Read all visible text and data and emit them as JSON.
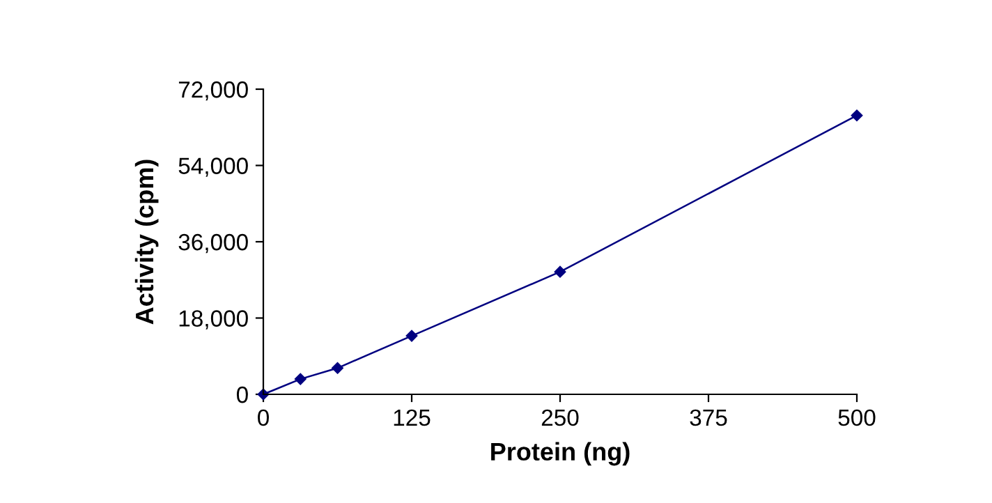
{
  "chart_data": {
    "type": "line",
    "xlabel": "Protein (ng)",
    "ylabel": "Activity (cpm)",
    "x": [
      0,
      31.25,
      62.5,
      125,
      250,
      500
    ],
    "series": [
      {
        "color": "#000080",
        "values": [
          0,
          3600,
          6200,
          13800,
          28900,
          65800
        ]
      }
    ],
    "xlim": [
      0,
      500
    ],
    "xticks": [
      0,
      125,
      250,
      375,
      500
    ],
    "ylim": [
      0,
      72000
    ],
    "yticks": [
      {
        "value": 0,
        "label": "0"
      },
      {
        "value": 18000,
        "label": "18,000"
      },
      {
        "value": 36000,
        "label": "36,000"
      },
      {
        "value": 54000,
        "label": "54,000"
      },
      {
        "value": 72000,
        "label": "72,000"
      }
    ],
    "grid": false,
    "marker": "diamond",
    "line_style": "solid"
  }
}
